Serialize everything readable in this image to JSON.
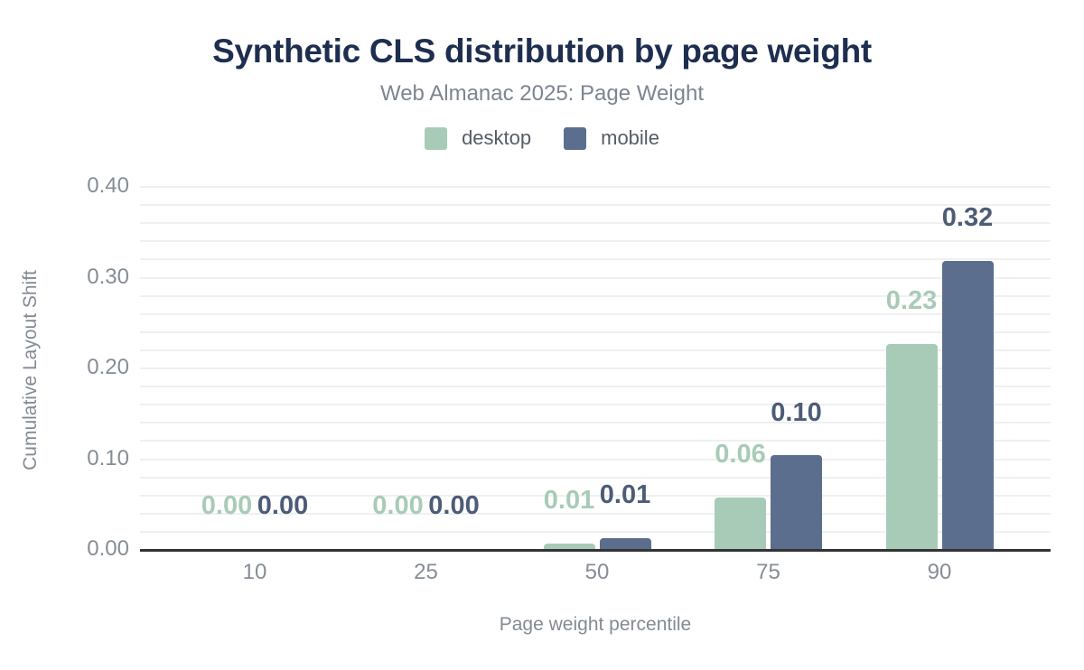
{
  "header": {
    "title": "Synthetic CLS distribution by page weight",
    "subtitle": "Web Almanac 2025: Page Weight"
  },
  "colors": {
    "title": "#1e2e4f",
    "subtitle": "#7d8591",
    "desktop": "#a8cbb7",
    "mobile": "#5b6e8e",
    "desktop_label": "#a8cbb7",
    "mobile_label": "#4d5c77",
    "axis_text": "#868d96",
    "axis_line": "#333333",
    "gridline": "#f0f0f2",
    "legend_text": "#565c66"
  },
  "chart_data": {
    "type": "bar",
    "title": "Synthetic CLS distribution by page weight",
    "subtitle": "Web Almanac 2025: Page Weight",
    "xlabel": "Page weight percentile",
    "ylabel": "Cumulative Layout Shift",
    "categories": [
      "10",
      "25",
      "50",
      "75",
      "90"
    ],
    "series": [
      {
        "name": "desktop",
        "color": "#a8cbb7",
        "label_color": "#a8cbb7",
        "values": [
          0.0,
          0.0,
          0.006,
          0.057,
          0.226
        ],
        "labels": [
          "0.00",
          "0.00",
          "0.01",
          "0.06",
          "0.23"
        ]
      },
      {
        "name": "mobile",
        "color": "#5b6e8e",
        "label_color": "#4d5c77",
        "values": [
          0.0,
          0.0,
          0.012,
          0.103,
          0.317
        ],
        "labels": [
          "0.00",
          "0.00",
          "0.01",
          "0.10",
          "0.32"
        ]
      }
    ],
    "yticks": [
      "0.00",
      "0.10",
      "0.20",
      "0.30",
      "0.40"
    ],
    "ylim": [
      0,
      0.4
    ],
    "grid_interval": 0.02,
    "grid": true,
    "legend_position": "top"
  }
}
